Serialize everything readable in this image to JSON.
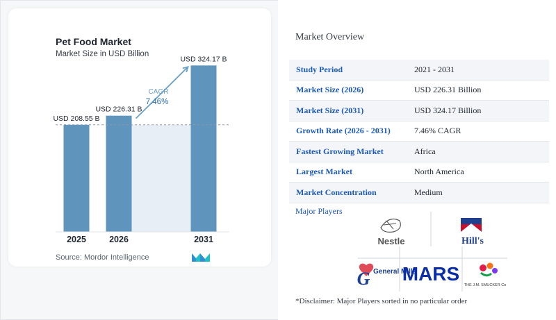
{
  "chart_data": {
    "type": "bar",
    "title": "Pet Food Market",
    "subtitle": "Market Size in USD Billion",
    "categories": [
      "2025",
      "2026",
      "2031"
    ],
    "values": [
      208.55,
      226.31,
      324.17
    ],
    "value_labels": [
      "USD 208.55 B",
      "USD 226.31 B",
      "USD 324.17 B"
    ],
    "cagr_label": "CAGR",
    "cagr_value": "7.46%",
    "baseline_reference": 208.55,
    "ylim": [
      0,
      330
    ],
    "grid": false,
    "colors": {
      "bar": "#5f95bd",
      "shade": "#e8eef5",
      "arrow": "#6aa0c8",
      "dashed": "#8f9aa6"
    }
  },
  "source": "Source: Mordor Intelligence",
  "overview": {
    "title": "Market Overview",
    "rows": [
      {
        "key": "Study Period",
        "value": "2021 - 2031"
      },
      {
        "key": "Market Size (2026)",
        "value": "USD 226.31 Billion"
      },
      {
        "key": "Market Size (2031)",
        "value": "USD 324.17 Billion"
      },
      {
        "key": "Growth Rate (2026 - 2031)",
        "value": "7.46% CAGR"
      },
      {
        "key": "Fastest Growing Market",
        "value": "Africa"
      },
      {
        "key": "Largest Market",
        "value": "North America"
      },
      {
        "key": "Market Concentration",
        "value": "Medium"
      }
    ]
  },
  "players": {
    "title": "Major Players",
    "logos": {
      "nestle": "Nestle",
      "hills": "Hill's",
      "general_mills": "General Mills",
      "mars": "MARS",
      "smucker": "THE J.M. SMUCKER Co"
    }
  },
  "disclaimer": "*Disclaimer: Major Players sorted in no particular order"
}
